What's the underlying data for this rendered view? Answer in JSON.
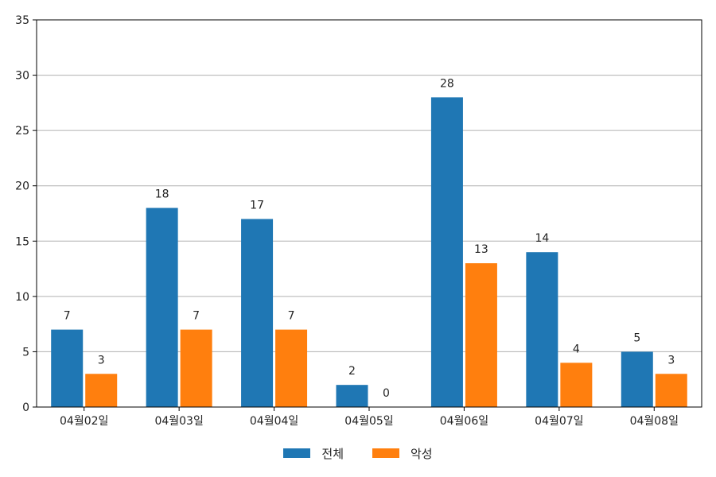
{
  "chart_data": {
    "type": "bar",
    "categories": [
      "04월02일",
      "04월03일",
      "04월04일",
      "04월05일",
      "04월06일",
      "04월07일",
      "04월08일"
    ],
    "series": [
      {
        "name": "전체",
        "values": [
          7,
          18,
          17,
          2,
          28,
          14,
          5
        ],
        "color": "#1f77b4"
      },
      {
        "name": "악성",
        "values": [
          3,
          7,
          7,
          0,
          13,
          4,
          3
        ],
        "color": "#ff7f0e"
      }
    ],
    "ylim": [
      0,
      35
    ],
    "yticks": [
      0,
      5,
      10,
      15,
      20,
      25,
      30,
      35
    ],
    "grid": true,
    "legend_position": "bottom-center",
    "data_labels": true
  }
}
